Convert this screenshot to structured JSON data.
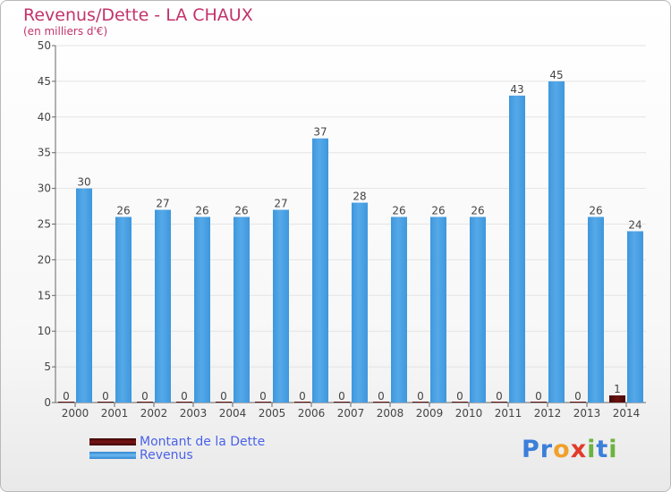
{
  "title": "Revenus/Dette - LA CHAUX",
  "subtitle": "(en milliers d'€)",
  "logo": {
    "text": "Proxiti",
    "letters": [
      "P",
      "r",
      "o",
      "x",
      "i",
      "t",
      "i"
    ],
    "colors": [
      "#3b7fd9",
      "#3b7fd9",
      "#f0a02a",
      "#e23a2a",
      "#6cb33e",
      "#3b7fd9",
      "#6cb33e"
    ]
  },
  "colors": {
    "dette": "#6b1010",
    "revenus": "#55a9e8",
    "revenus_dark": "#2f86cf",
    "axis": "#666666",
    "grid": "#e4e4e4",
    "label": "#444444"
  },
  "chart_data": {
    "type": "bar",
    "title": "Revenus/Dette - LA CHAUX",
    "ylabel": "(en milliers d'€)",
    "xlabel": "",
    "ylim": [
      0,
      50
    ],
    "yticks": [
      0,
      5,
      10,
      15,
      20,
      25,
      30,
      35,
      40,
      45,
      50
    ],
    "grid": true,
    "legend": "bottom-left",
    "categories": [
      "2000",
      "2001",
      "2002",
      "2003",
      "2004",
      "2005",
      "2006",
      "2007",
      "2008",
      "2009",
      "2010",
      "2011",
      "2012",
      "2013",
      "2014"
    ],
    "series": [
      {
        "name": "Montant de la Dette",
        "values": [
          0,
          0,
          0,
          0,
          0,
          0,
          0,
          0,
          0,
          0,
          0,
          0,
          0,
          0,
          1
        ]
      },
      {
        "name": "Revenus",
        "values": [
          30,
          26,
          27,
          26,
          26,
          27,
          37,
          28,
          26,
          26,
          26,
          43,
          45,
          26,
          24
        ]
      }
    ]
  }
}
